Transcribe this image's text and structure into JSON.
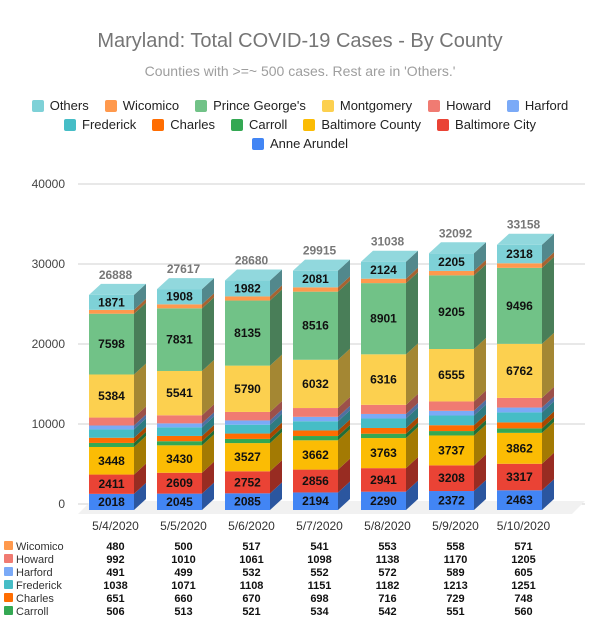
{
  "chart_data": {
    "type": "bar",
    "stacked": true,
    "three_d": true,
    "title": "Maryland: Total COVID-19 Cases - By County",
    "subtitle": "Counties with >=~ 500 cases. Rest are in 'Others.'",
    "xlabel": "",
    "ylabel": "",
    "ylim": [
      0,
      40000
    ],
    "yticks": [
      "0",
      "10000",
      "20000",
      "30000",
      "40000"
    ],
    "grid": true,
    "legend_position": "top",
    "categories": [
      "5/4/2020",
      "5/5/2020",
      "5/6/2020",
      "5/7/2020",
      "5/8/2020",
      "5/9/2020",
      "5/10/2020"
    ],
    "totals": [
      26888,
      27617,
      28680,
      29915,
      31038,
      32092,
      33158
    ],
    "series": [
      {
        "name": "Anne Arundel",
        "color": "#4285f4",
        "values": [
          2018,
          2045,
          2085,
          2194,
          2290,
          2372,
          2463
        ]
      },
      {
        "name": "Baltimore City",
        "color": "#ea4335",
        "values": [
          2411,
          2609,
          2752,
          2856,
          2941,
          3208,
          3317
        ]
      },
      {
        "name": "Baltimore County",
        "color": "#fbbc04",
        "values": [
          3448,
          3430,
          3527,
          3662,
          3763,
          3737,
          3862
        ]
      },
      {
        "name": "Carroll",
        "color": "#34a853",
        "values": [
          506,
          513,
          521,
          534,
          542,
          551,
          560
        ]
      },
      {
        "name": "Charles",
        "color": "#ff6d01",
        "values": [
          651,
          660,
          670,
          698,
          716,
          729,
          748
        ]
      },
      {
        "name": "Frederick",
        "color": "#46bdc6",
        "values": [
          1038,
          1071,
          1108,
          1151,
          1182,
          1213,
          1251
        ]
      },
      {
        "name": "Harford",
        "color": "#7baaf7",
        "values": [
          491,
          499,
          532,
          552,
          572,
          589,
          605
        ]
      },
      {
        "name": "Howard",
        "color": "#f07b72",
        "values": [
          992,
          1010,
          1061,
          1098,
          1138,
          1170,
          1205
        ]
      },
      {
        "name": "Montgomery",
        "color": "#fcd04f",
        "values": [
          5384,
          5541,
          5790,
          6032,
          6316,
          6555,
          6762
        ]
      },
      {
        "name": "Prince George's",
        "color": "#71c287",
        "values": [
          7598,
          7831,
          8135,
          8516,
          8901,
          9205,
          9496
        ]
      },
      {
        "name": "Wicomico",
        "color": "#ff994d",
        "values": [
          480,
          500,
          517,
          541,
          553,
          558,
          571
        ]
      },
      {
        "name": "Others",
        "color": "#7ed1d7",
        "values": [
          1871,
          1908,
          1982,
          2081,
          2124,
          2205,
          2318
        ]
      }
    ],
    "legend_rows": [
      [
        "Others",
        "Wicomico",
        "Prince George's",
        "Montgomery",
        "Howard",
        "Harford"
      ],
      [
        "Frederick",
        "Charles",
        "Carroll",
        "Baltimore County",
        "Baltimore City"
      ],
      [
        "Anne Arundel"
      ]
    ]
  }
}
